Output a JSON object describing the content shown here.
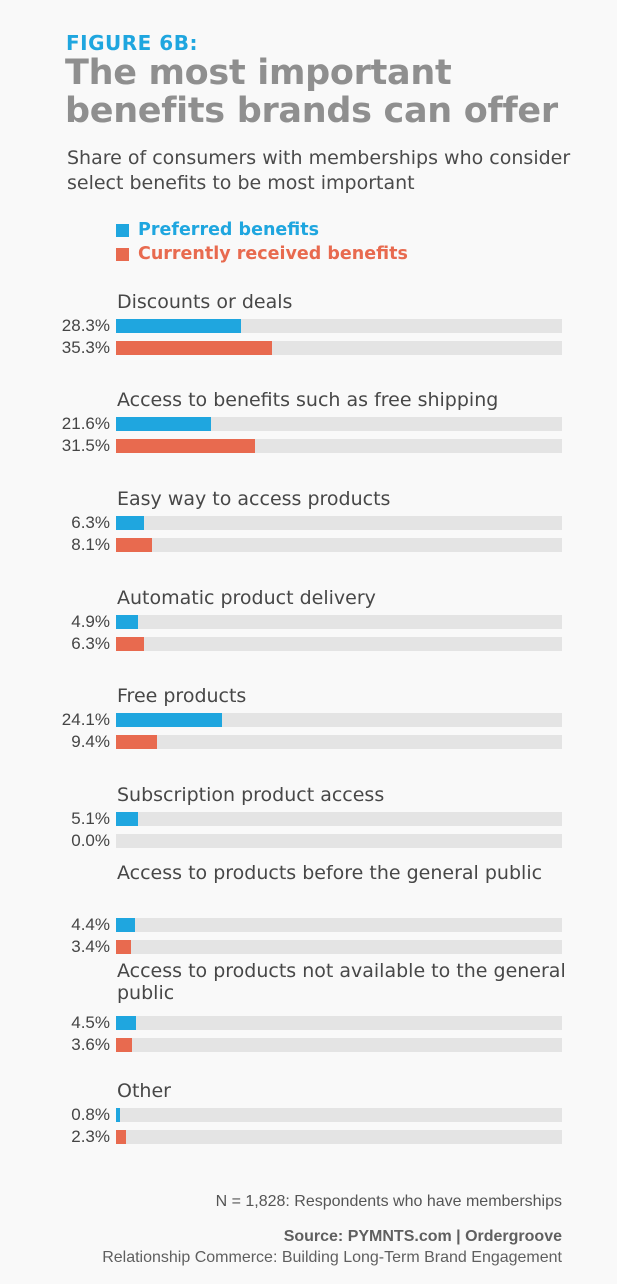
{
  "figure_label": "FIGURE 6B:",
  "title": "The most important benefits brands can offer",
  "subtitle": "Share of consumers with memberships who consider select benefits to be most important",
  "colors": {
    "preferred": "#1fa6df",
    "current": "#e86a4f",
    "track": "#e4e4e4"
  },
  "footer": {
    "note": "N = 1,828: Respondents who have memberships",
    "source": "Source: PYMNTS.com  |  Ordergroove",
    "report": "Relationship Commerce: Building Long-Term Brand Engagement"
  },
  "chart_data": {
    "type": "bar",
    "orientation": "horizontal",
    "title": "The most important benefits brands can offer",
    "subtitle": "Share of consumers with memberships who consider select benefits to be most important",
    "xlim": [
      0,
      100
    ],
    "unit": "%",
    "legend": [
      "Preferred benefits",
      "Currently received benefits"
    ],
    "legend_position": "top-left",
    "categories": [
      "Discounts or deals",
      "Access to benefits such as free shipping",
      "Easy way to access products",
      "Automatic product delivery",
      "Free products",
      "Subscription product access",
      "Access to products before the general public",
      "Access to products not available to the general public",
      "Other"
    ],
    "series": [
      {
        "name": "Preferred benefits",
        "values": [
          28.3,
          21.6,
          6.3,
          4.9,
          24.1,
          5.1,
          4.4,
          4.5,
          0.8
        ],
        "labels": [
          "28.3%",
          "21.6%",
          "6.3%",
          "4.9%",
          "24.1%",
          "5.1%",
          "4.4%",
          "4.5%",
          "0.8%"
        ]
      },
      {
        "name": "Currently received benefits",
        "values": [
          35.3,
          31.5,
          8.1,
          6.3,
          9.4,
          0.0,
          3.4,
          3.6,
          2.3
        ],
        "labels": [
          "35.3%",
          "31.5%",
          "8.1%",
          "6.3%",
          "9.4%",
          "0.0%",
          "3.4%",
          "3.6%",
          "2.3%"
        ]
      }
    ]
  }
}
